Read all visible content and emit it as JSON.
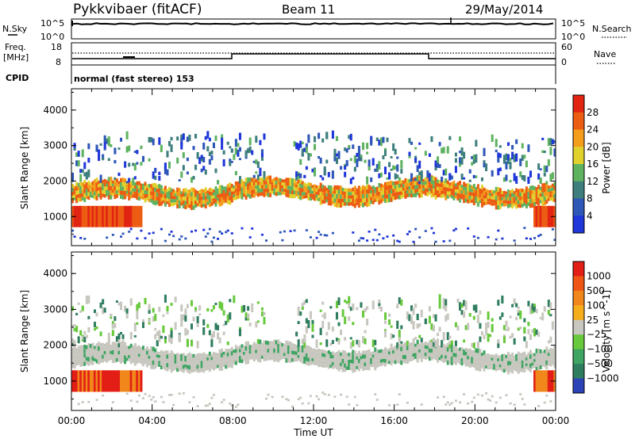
{
  "header": {
    "station": "Pykkvibaer (fitACF)",
    "beam": "Beam 11",
    "date": "29/May/2014"
  },
  "sky_panel": {
    "left_label": "N.Sky",
    "left_ticks": [
      "10^5",
      "10^0"
    ],
    "right_label": "N.Search",
    "right_ticks": [
      "10^5",
      "10^0"
    ]
  },
  "freq_panel": {
    "left_label_1": "Freq.",
    "left_label_2": "[MHz]",
    "left_ticks": [
      "18",
      "8"
    ],
    "right_label": "Nave",
    "right_ticks": [
      "60",
      "0"
    ]
  },
  "cpid": {
    "label": "CPID",
    "text": "normal (fast stereo) 153"
  },
  "colors": {
    "power_scale": [
      "#1f36d9",
      "#2e57b8",
      "#3e7f7d",
      "#5fb360",
      "#e1d12d",
      "#f39d1b",
      "#ec5c12",
      "#e22513"
    ],
    "velocity_scale": [
      "#2b43b6",
      "#2f7d5f",
      "#3ea563",
      "#68c93c",
      "#c8c7bf",
      "#f5ad1b",
      "#f1861b",
      "#ef5514",
      "#e21e16"
    ]
  },
  "chart_data": [
    {
      "type": "heatmap",
      "title": "",
      "xlabel": "",
      "ylabel": "Slant Range [km]",
      "x_ticks": [
        "00:00",
        "04:00",
        "08:00",
        "12:00",
        "16:00",
        "20:00",
        "00:00"
      ],
      "x_range_hours": [
        0,
        24
      ],
      "y_ticks": [
        1000,
        2000,
        3000,
        4000
      ],
      "ylim": [
        180,
        4600
      ],
      "colorbar": {
        "label": "Power [dB]",
        "ticks": [
          "28",
          "24",
          "20",
          "16",
          "12",
          "8",
          "4"
        ],
        "range": [
          0,
          32
        ]
      },
      "grid": false
    },
    {
      "type": "heatmap",
      "title": "",
      "xlabel": "Time UT",
      "ylabel": "Slant Range [km]",
      "x_ticks": [
        "00:00",
        "04:00",
        "08:00",
        "12:00",
        "16:00",
        "20:00",
        "00:00"
      ],
      "x_range_hours": [
        0,
        24
      ],
      "y_ticks": [
        1000,
        2000,
        3000,
        4000
      ],
      "ylim": [
        180,
        4600
      ],
      "colorbar": {
        "label": "Velocity [m s^-1]",
        "ticks": [
          "1000",
          "500",
          "100",
          "25",
          "−25",
          "−100",
          "−500",
          "−1000"
        ]
      },
      "grid": false
    }
  ]
}
